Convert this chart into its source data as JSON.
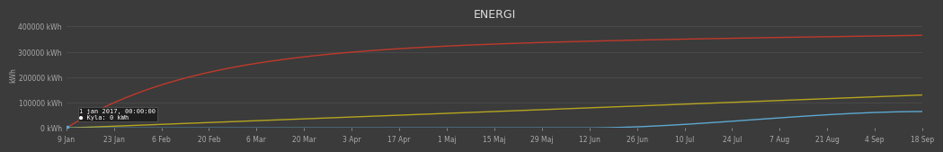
{
  "title": "ENERGI",
  "background_color": "#3b3b3b",
  "plot_bg_color": "#3b3b3b",
  "grid_color": "#505050",
  "title_color": "#dddddd",
  "tick_label_color": "#aaaaaa",
  "ylabel": "kWh",
  "ylim": [
    0,
    420000
  ],
  "yticks": [
    0,
    100000,
    200000,
    300000,
    400000
  ],
  "ytick_labels": [
    "0 kWh",
    "100000 kWh",
    "200000 kWh",
    "300000 kWh",
    "400000 kWh"
  ],
  "x_labels": [
    "9 Jan",
    "23 Jan",
    "6 Feb",
    "20 Feb",
    "6 Mar",
    "20 Mar",
    "3 Apr",
    "17 Apr",
    "1 Maj",
    "15 Maj",
    "29 Maj",
    "12 Jun",
    "26 Jun",
    "10 Jul",
    "24 Jul",
    "7 Aug",
    "21 Aug",
    "4 Sep",
    "18 Sep"
  ],
  "n_points": 263,
  "red_color": "#c0392b",
  "yellow_color": "#b5a520",
  "blue_color": "#5da8d0",
  "tooltip_bg": "#1e1e1e",
  "tooltip_border": "#555555",
  "tooltip_text_color": "#ffffff",
  "tooltip_accent_color": "#5da8d0"
}
